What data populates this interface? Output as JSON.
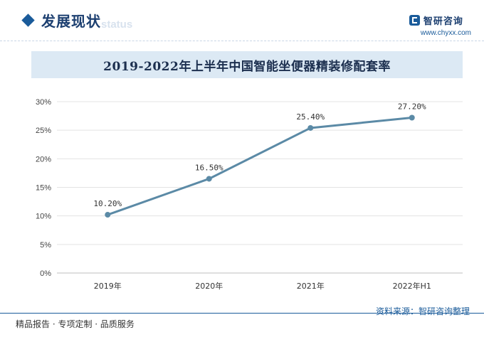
{
  "header": {
    "section_title": "发展现状",
    "section_subtitle": "status",
    "brand_name": "智研咨询",
    "brand_url": "www.chyxx.com"
  },
  "chart_data": {
    "type": "line",
    "title": "2019-2022年上半年中国智能坐便器精装修配套率",
    "categories": [
      "2019年",
      "2020年",
      "2021年",
      "2022年H1"
    ],
    "values": [
      10.2,
      16.5,
      25.4,
      27.2
    ],
    "data_labels": [
      "10.20%",
      "16.50%",
      "25.40%",
      "27.20%"
    ],
    "y_ticks": [
      "0%",
      "5%",
      "10%",
      "15%",
      "20%",
      "25%",
      "30%"
    ],
    "ylim": [
      0,
      30
    ],
    "grid": true,
    "line_color": "#5b8aa6"
  },
  "footer": {
    "left": "精品报告 · 专项定制 · 品质服务",
    "source": "资料来源：智研咨询整理"
  }
}
